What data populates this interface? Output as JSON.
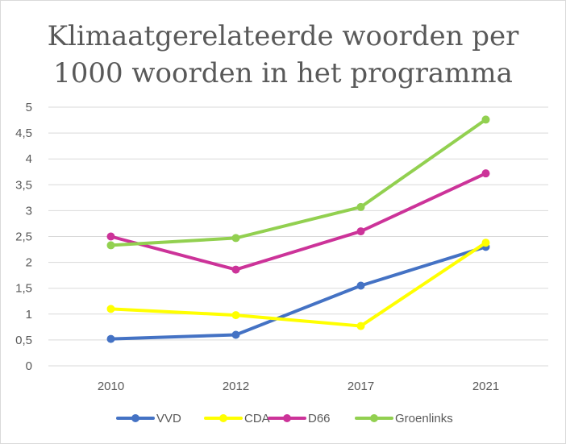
{
  "chart_data": {
    "type": "line",
    "title_line1": "Klimaatgerelateerde  woorden  per",
    "title_line2": "1000 woorden  in het programma",
    "categories": [
      "2010",
      "2012",
      "2017",
      "2021"
    ],
    "ylim": [
      0,
      5
    ],
    "yticks": [
      "0",
      "0,5",
      "1",
      "1,5",
      "2",
      "2,5",
      "3",
      "3,5",
      "4",
      "4,5",
      "5"
    ],
    "grid": true,
    "legend_position": "bottom",
    "series": [
      {
        "name": "VVD",
        "color": "#4472c4",
        "values": [
          0.52,
          0.6,
          1.55,
          2.3
        ]
      },
      {
        "name": "CDA",
        "color": "#ffff00",
        "values": [
          1.1,
          0.98,
          0.77,
          2.38
        ]
      },
      {
        "name": "D66",
        "color": "#cc3399",
        "values": [
          2.5,
          1.86,
          2.6,
          3.72
        ]
      },
      {
        "name": "Groenlinks",
        "color": "#92d050",
        "values": [
          2.33,
          2.47,
          3.07,
          4.76
        ]
      }
    ]
  }
}
